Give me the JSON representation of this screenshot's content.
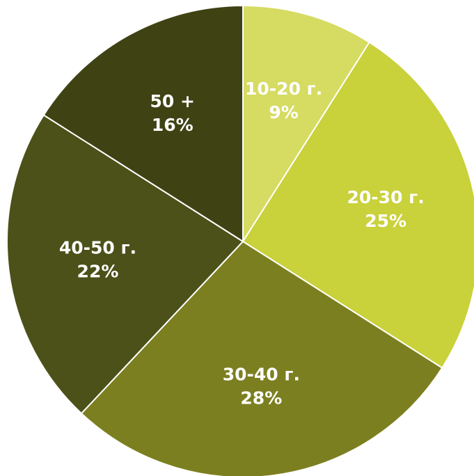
{
  "chart_data": {
    "type": "pie",
    "start_angle_deg": 0,
    "direction": "clockwise",
    "slices": [
      {
        "label": "10-20 г.",
        "percent_text": "9%",
        "value": 9,
        "color": "#d6db62"
      },
      {
        "label": "20-30 г.",
        "percent_text": "25%",
        "value": 25,
        "color": "#c9d13b"
      },
      {
        "label": "30-40 г.",
        "percent_text": "28%",
        "value": 28,
        "color": "#7c7f20"
      },
      {
        "label": "40-50 г.",
        "percent_text": "22%",
        "value": 22,
        "color": "#4b5118"
      },
      {
        "label": "50 +",
        "percent_text": "16%",
        "value": 16,
        "color": "#3f4213"
      }
    ],
    "separator_color": "#ffffff"
  }
}
